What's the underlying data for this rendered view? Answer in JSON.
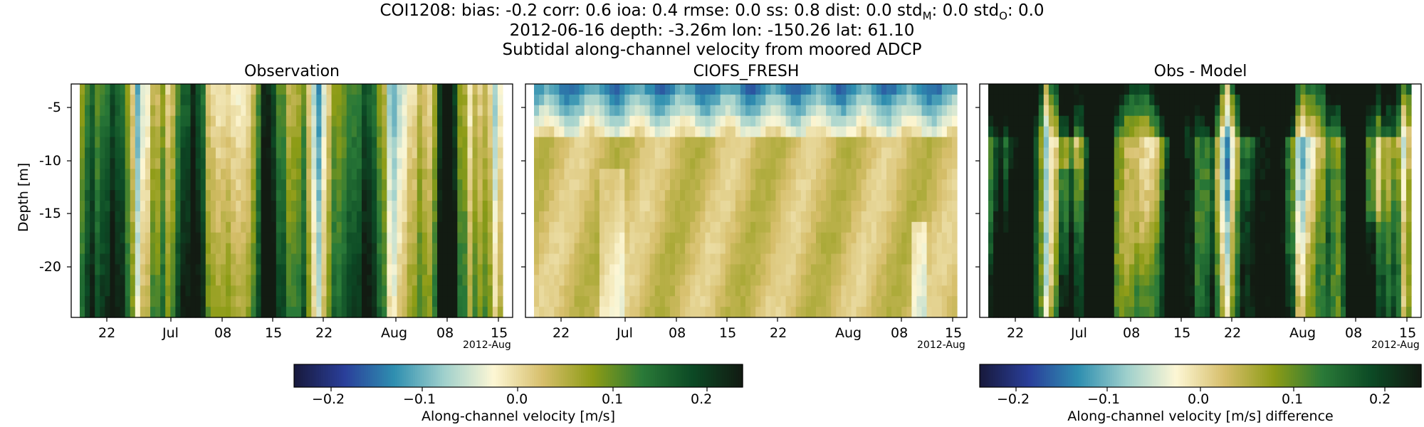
{
  "header": {
    "metrics_station": "COI1208",
    "metrics_text": "bias: -0.2  corr: 0.6  ioa: 0.4  rmse: 0.0  ss: 0.8  dist: 0.0  std",
    "metrics_std_m_sub": "M",
    "metrics_mid": ": 0.0  std",
    "metrics_std_o_sub": "O",
    "metrics_end": ": 0.0",
    "line2": "2012-06-16 depth: -3.26m lon: -150.26 lat: 61.10",
    "line3": "Subtidal along-channel velocity from moored ADCP"
  },
  "chart_data": [
    {
      "type": "heatmap",
      "title": "Observation",
      "ylabel": "Depth [m]",
      "xticks": [
        "22",
        "Jul",
        "08",
        "15",
        "22",
        "Aug",
        "08",
        "15"
      ],
      "xoffset_label": "2012-Aug",
      "yticks": [
        "-5",
        "-10",
        "-15",
        "-20"
      ],
      "ylim": [
        -25,
        -3
      ],
      "field": "obs"
    },
    {
      "type": "heatmap",
      "title": "CIOFS_FRESH",
      "xticks": [
        "22",
        "Jul",
        "08",
        "15",
        "22",
        "Aug",
        "08",
        "15"
      ],
      "xoffset_label": "2012-Aug",
      "ylim": [
        -25,
        -3
      ],
      "field": "model"
    },
    {
      "type": "heatmap",
      "title": "Obs - Model",
      "xticks": [
        "22",
        "Jul",
        "08",
        "15",
        "22",
        "Aug",
        "08",
        "15"
      ],
      "xoffset_label": "2012-Aug",
      "ylim": [
        -25,
        -3
      ],
      "field": "diff"
    }
  ],
  "colorbars": [
    {
      "label": "Along-channel velocity [m/s]",
      "ticks": [
        "−0.2",
        "−0.1",
        "0.0",
        "0.1",
        "0.2"
      ],
      "range": [
        -0.23,
        0.23
      ]
    },
    {
      "label": "Along-channel velocity [m/s] difference",
      "ticks": [
        "−0.2",
        "−0.1",
        "0.0",
        "0.1",
        "0.2"
      ],
      "range": [
        -0.245,
        0.245
      ]
    }
  ],
  "colors": {
    "cmap": [
      "#181a3e",
      "#2a3f9a",
      "#2f8fb0",
      "#9fd0cc",
      "#fdf7d5",
      "#d6be6a",
      "#8d9c16",
      "#2a7a38",
      "#0c4a25",
      "#121b12"
    ]
  }
}
